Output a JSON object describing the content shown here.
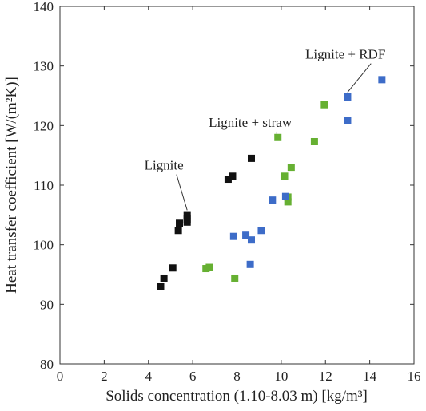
{
  "chart_data": {
    "type": "scatter",
    "title": "",
    "xlabel": "Solids concentration (1.10-8.03 m) [kg/m³]",
    "ylabel": "Heat transfer coefficient [W/(m²K)]",
    "xlim": [
      0,
      16
    ],
    "ylim": [
      80,
      140
    ],
    "xticks": [
      "0",
      "2",
      "4",
      "6",
      "8",
      "10",
      "12",
      "14",
      "16"
    ],
    "yticks": [
      "80",
      "90",
      "100",
      "110",
      "120",
      "130",
      "140"
    ],
    "grid": false,
    "series": [
      {
        "name": "Lignite",
        "color": "#111111",
        "points": [
          [
            4.55,
            93.0
          ],
          [
            4.7,
            94.4
          ],
          [
            5.1,
            96.1
          ],
          [
            5.35,
            102.4
          ],
          [
            5.4,
            103.6
          ],
          [
            5.75,
            103.8
          ],
          [
            5.75,
            104.3
          ],
          [
            5.75,
            104.9
          ],
          [
            7.6,
            111.0
          ],
          [
            7.8,
            111.5
          ],
          [
            8.65,
            114.5
          ]
        ]
      },
      {
        "name": "Lignite + straw",
        "color": "#66b032",
        "points": [
          [
            6.6,
            96.0
          ],
          [
            6.75,
            96.2
          ],
          [
            7.9,
            94.4
          ],
          [
            9.85,
            118.0
          ],
          [
            10.15,
            111.5
          ],
          [
            10.3,
            107.2
          ],
          [
            10.3,
            108.0
          ],
          [
            10.45,
            113.0
          ],
          [
            11.5,
            117.3
          ],
          [
            11.95,
            123.5
          ]
        ]
      },
      {
        "name": "Lignite + RDF",
        "color": "#3d6cc8",
        "points": [
          [
            7.85,
            101.4
          ],
          [
            8.4,
            101.6
          ],
          [
            8.6,
            96.7
          ],
          [
            8.65,
            100.8
          ],
          [
            9.1,
            102.4
          ],
          [
            9.6,
            107.5
          ],
          [
            10.2,
            108.1
          ],
          [
            13.0,
            120.9
          ],
          [
            13.0,
            124.8
          ],
          [
            14.55,
            127.7
          ]
        ]
      }
    ],
    "annotations": [
      {
        "text": "Lignite",
        "x": 4.7,
        "y": 112.6,
        "points_to": [
          5.75,
          105.8
        ]
      },
      {
        "text": "Lignite + straw",
        "x": 8.6,
        "y": 119.8,
        "points_to": [
          9.8,
          118.6
        ]
      },
      {
        "text": "Lignite + RDF",
        "x": 12.9,
        "y": 131.2,
        "points_to": [
          13.0,
          125.6
        ]
      }
    ]
  }
}
